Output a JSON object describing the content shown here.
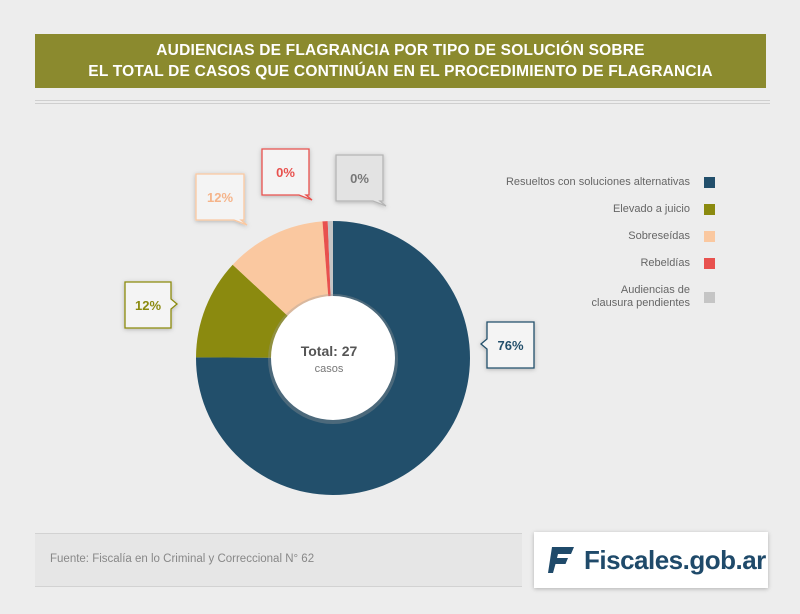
{
  "header": {
    "title_line1": "AUDIENCIAS DE FLAGRANCIA POR TIPO DE SOLUCIÓN SOBRE",
    "title_line2": "EL TOTAL DE CASOS QUE CONTINÚAN EN EL PROCEDIMIENTO DE FLAGRANCIA"
  },
  "chart_data": {
    "type": "pie",
    "title": "AUDIENCIAS DE FLAGRANCIA POR TIPO DE SOLUCIÓN SOBRE EL TOTAL DE CASOS QUE CONTINÚAN EN EL PROCEDIMIENTO DE FLAGRANCIA",
    "center_total": "Total: 27",
    "center_unit": "casos",
    "slices": [
      {
        "label": "Resueltos con soluciones alternativas",
        "value": 76,
        "display": "76%",
        "color": "#224f6b"
      },
      {
        "label": "Elevado a juicio",
        "value": 12,
        "display": "12%",
        "color": "#8b8a0f"
      },
      {
        "label": "Sobreseídas",
        "value": 12,
        "display": "12%",
        "color": "#fac8a0"
      },
      {
        "label": "Rebeldías",
        "value": 0,
        "display": "0%",
        "color": "#e8514e"
      },
      {
        "label": "Audiencias de clausura pendientes",
        "value": 0,
        "display": "0%",
        "color": "#c5c5c5"
      }
    ],
    "legend_position": "right"
  },
  "legend": [
    {
      "label": "Resueltos con soluciones alternativas",
      "color": "#224f6b"
    },
    {
      "label": "Elevado a juicio",
      "color": "#8b8a0f"
    },
    {
      "label": "Sobreseídas",
      "color": "#fac8a0"
    },
    {
      "label": "Rebeldías",
      "color": "#e8514e"
    },
    {
      "label": "Audiencias de\nclausura pendientes",
      "color": "#c5c5c5"
    }
  ],
  "footer": {
    "source": "Fuente: Fiscalía en lo Criminal y Correccional N° 62"
  },
  "logo": {
    "text": "Fiscales.gob.ar",
    "color": "#1f4a6a",
    "icon": "fiscales-logo-icon"
  }
}
